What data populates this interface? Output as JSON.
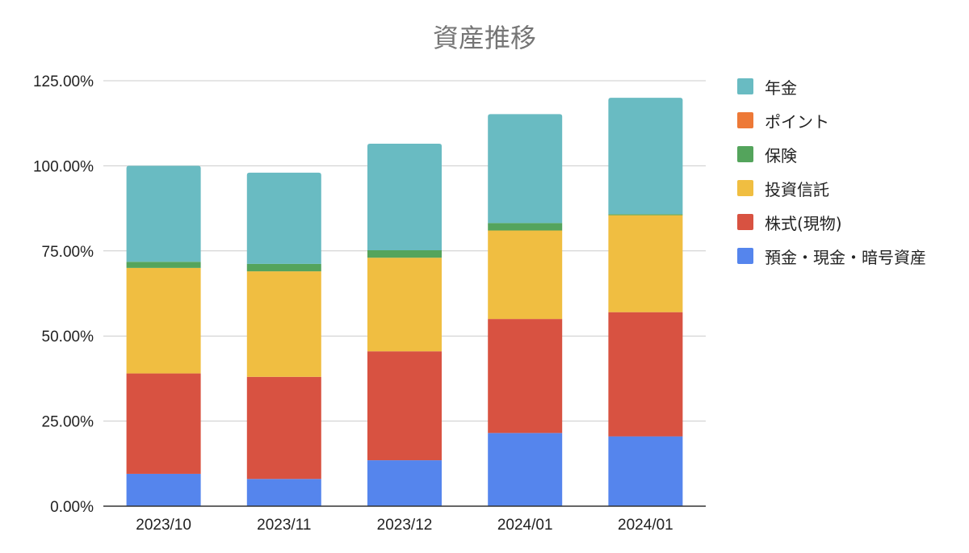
{
  "chart_data": {
    "type": "bar",
    "stacked": true,
    "title": "資産推移",
    "xlabel": "",
    "ylabel": "",
    "ylim": [
      0,
      1.25
    ],
    "y_tick_labels": [
      "0.00%",
      "25.00%",
      "50.00%",
      "75.00%",
      "100.00%",
      "125.00%"
    ],
    "grid": true,
    "legend_position": "right",
    "categories": [
      "2023/10",
      "2023/11",
      "2023/12",
      "2024/01",
      "2024/01"
    ],
    "series": [
      {
        "name": "預金・現金・暗号資産",
        "color": "#5585ED",
        "values": [
          0.095,
          0.08,
          0.135,
          0.215,
          0.205
        ]
      },
      {
        "name": "株式(現物)",
        "color": "#D85241",
        "values": [
          0.295,
          0.3,
          0.32,
          0.335,
          0.365
        ]
      },
      {
        "name": "投資信託",
        "color": "#F0BE41",
        "values": [
          0.31,
          0.31,
          0.275,
          0.26,
          0.285
        ]
      },
      {
        "name": "保険",
        "color": "#54A45C",
        "values": [
          0.018,
          0.022,
          0.022,
          0.022,
          0.003
        ]
      },
      {
        "name": "ポイント",
        "color": "#ED7937",
        "values": [
          0,
          0,
          0,
          0,
          0
        ]
      },
      {
        "name": "年金",
        "color": "#69BBC2",
        "values": [
          0.282,
          0.268,
          0.313,
          0.32,
          0.342
        ]
      }
    ],
    "legend_order": [
      "年金",
      "ポイント",
      "保険",
      "投資信託",
      "株式(現物)",
      "預金・現金・暗号資産"
    ]
  }
}
